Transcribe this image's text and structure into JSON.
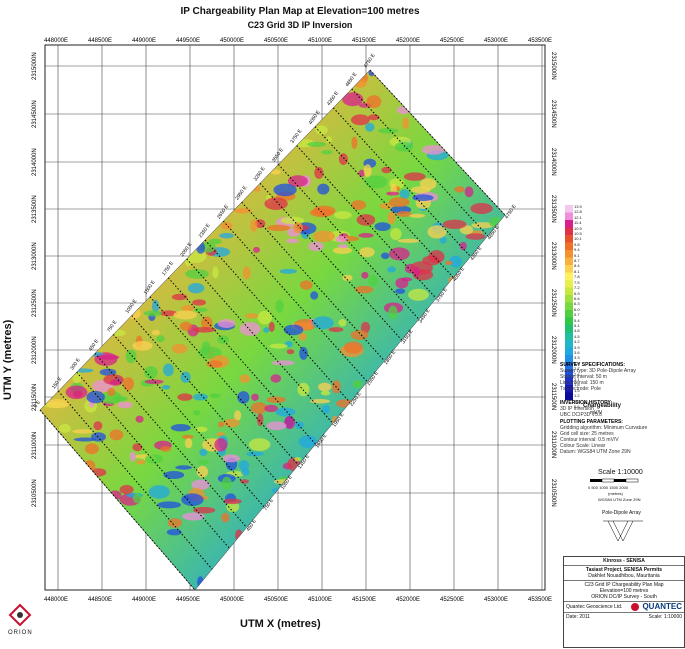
{
  "title": "IP Chargeability Plan Map at Elevation=100 metres",
  "subtitle": "C23 Grid 3D IP Inversion",
  "x_axis_label": "UTM X (metres)",
  "y_axis_label": "UTM Y (metres)",
  "x_ticks": [
    "448000E",
    "448500E",
    "449000E",
    "449500E",
    "450000E",
    "450500E",
    "451000E",
    "451500E",
    "452000E",
    "452500E",
    "453000E",
    "453500E"
  ],
  "y_ticks": [
    "2315000N",
    "2314500N",
    "2314000N",
    "2313500N",
    "2313000N",
    "2312500N",
    "2312000N",
    "2311500N",
    "2311000N",
    "2310500N"
  ],
  "line_labels": [
    "0 E",
    "150 E",
    "300 E",
    "450 E",
    "750 E",
    "1050 E",
    "1500 E",
    "1750 E",
    "2050 E",
    "2350 E",
    "2650 E",
    "2950 E",
    "3250 E",
    "3550 E",
    "3750 E",
    "4050 E",
    "4350 E",
    "4650 E",
    "4750 E"
  ],
  "line_end_labels": [
    "450 E",
    "750 E",
    "1050 E",
    "1350 E",
    "1650 E",
    "1950 E",
    "2250 E",
    "2550 E",
    "2850 E",
    "3150 E",
    "3450 E",
    "3750 E",
    "4050 E",
    "4350 E",
    "4650 E",
    "4750 E"
  ],
  "legend": {
    "title": "Chargeability",
    "unit": "mV/V",
    "values": [
      "13.9",
      "12.8",
      "12.1",
      "11.4",
      "10.9",
      "10.5",
      "10.1",
      "9.8",
      "9.4",
      "9.1",
      "8.7",
      "8.4",
      "8.1",
      "7.8",
      "7.5",
      "7.2",
      "6.9",
      "6.6",
      "6.3",
      "6.0",
      "5.7",
      "5.4",
      "5.1",
      "4.8",
      "4.5",
      "4.2",
      "3.9",
      "3.6",
      "3.3",
      "3.0",
      "2.7",
      "2.4",
      "2.1",
      "1.8",
      "1.5",
      "1.2",
      "0.9",
      "0.6"
    ],
    "colors": [
      "#f4c8ec",
      "#ee8fd8",
      "#d8208c",
      "#e0304a",
      "#e85030",
      "#f07028",
      "#f49030",
      "#f8b040",
      "#fcd050",
      "#fff060",
      "#e8f050",
      "#c8e840",
      "#a0e040",
      "#78d840",
      "#50d040",
      "#30c848",
      "#20c070",
      "#20c0a0",
      "#20b8c8",
      "#20a8e0",
      "#2090e8",
      "#2070e8",
      "#2050e0",
      "#2030d0",
      "#1818b8",
      "#0c0c98"
    ]
  },
  "panels": {
    "survey_head": "SURVEY SPECIFICATIONS:",
    "survey_lines": [
      "Survey type: 3D Pole-Dipole Array",
      "Station interval: 50 m",
      "Line interval: 150 m",
      "Tx Electrode: Pole"
    ],
    "inversion_head": "INVERSION HISTORY:",
    "inversion_lines": [
      "3D IP inversion",
      "UBC DCIP3D V5.0"
    ],
    "plotting_head": "PLOTTING PARAMETERS:",
    "plotting_lines": [
      "Gridding algorithm: Minimum Curvature",
      "Grid cell size: 25 metres",
      "Contour interval: 0.5 mV/V",
      "Colour Scale: Linear",
      "Datum: WGS84 UTM Zone 29N"
    ]
  },
  "scale": {
    "label": "Scale 1:10000",
    "bar_ticks": "0    500    1000  1500  2000",
    "unit": "(metres)",
    "projection": "WGS84 UTM Zone 29N"
  },
  "array_label": "Pole-Dipole Array",
  "title_block": {
    "client": "Kinross - SENISA",
    "project": "Tasiast Project, SENISA Permits",
    "location": "Dakhlet Nouadhibou, Mauritania",
    "map_title": "C23 Grid IP Chargeability Plan Map",
    "elevation": "Elevation=100 metres",
    "survey": "ORION DC/IP Survey - South",
    "company": "QUANTEC",
    "company_sub": "Geoscience",
    "qge": "Quantec Geoscience Ltd.",
    "meta1": "Date: 2011",
    "meta2": "Scale: 1:10000"
  },
  "orion_label": "ORION"
}
